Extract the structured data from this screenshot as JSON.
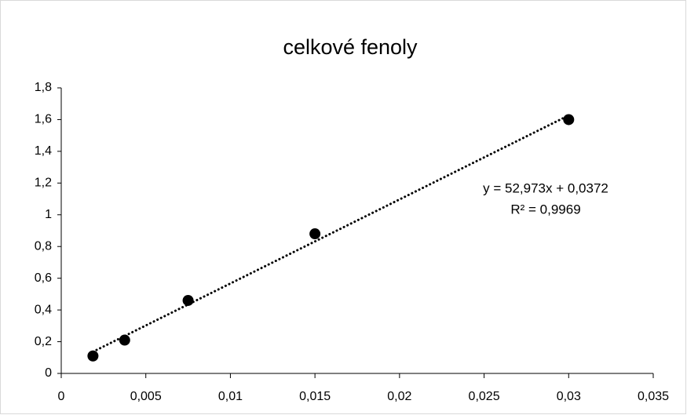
{
  "chart_data": {
    "type": "scatter",
    "title": "celkové fenoly",
    "x": [
      0.001875,
      0.00375,
      0.0075,
      0.015,
      0.03
    ],
    "series": [
      {
        "name": "celkové fenoly",
        "color": "#000000",
        "values": [
          0.11,
          0.21,
          0.46,
          0.88,
          1.6
        ]
      }
    ],
    "xlim": [
      0,
      0.035
    ],
    "xticks": [
      0,
      {
        "value": 0.005,
        "label": "0,005"
      },
      {
        "value": 0.01,
        "label": "0,01"
      },
      {
        "value": 0.015,
        "label": "0,015"
      },
      {
        "value": 0.02,
        "label": "0,02"
      },
      {
        "value": 0.025,
        "label": "0,025"
      },
      {
        "value": 0.03,
        "label": "0,03"
      },
      {
        "value": 0.035,
        "label": "0,035"
      }
    ],
    "ylim": [
      0,
      1.8
    ],
    "yticks": [
      0,
      {
        "value": 0.2,
        "label": "0,2"
      },
      {
        "value": 0.4,
        "label": "0,4"
      },
      {
        "value": 0.6,
        "label": "0,6"
      },
      {
        "value": 0.8,
        "label": "0,8"
      },
      1,
      {
        "value": 1.2,
        "label": "1,2"
      },
      {
        "value": 1.4,
        "label": "1,4"
      },
      {
        "value": 1.6,
        "label": "1,6"
      },
      {
        "value": 1.8,
        "label": "1,8"
      }
    ],
    "grid": false,
    "trendline": {
      "slope": 52.973,
      "intercept": 0.0372,
      "equation": "y = 52,973x + 0,0372",
      "r_squared": "R² = 0,9969"
    }
  }
}
